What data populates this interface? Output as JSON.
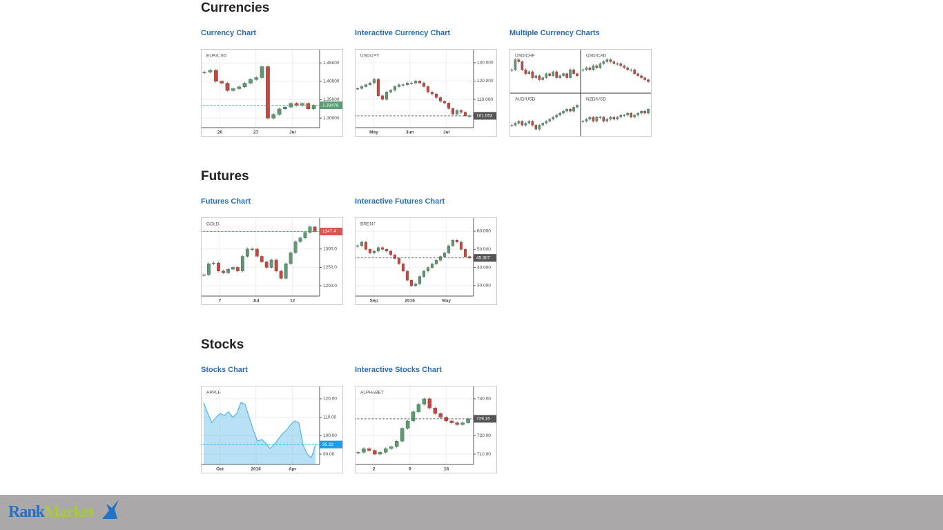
{
  "candle_colors": {
    "up": "#5c9a74",
    "down": "#c9463d"
  },
  "sections": [
    {
      "title": "Currencies",
      "cards": [
        {
          "link": "Currency Chart",
          "charts": [
            {
              "type": "candlestick",
              "symbol": "EUR/USD",
              "ylim": [
                1.274,
                1.486
              ],
              "yticks": [
                {
                  "value": 1.45,
                  "label": "1.45000"
                },
                {
                  "value": 1.4,
                  "label": "1.40000"
                },
                {
                  "value": 1.35,
                  "label": "1.35000"
                },
                {
                  "value": 1.3,
                  "label": "1.30000"
                }
              ],
              "xlabels": [
                "20",
                "27",
                "Jul"
              ],
              "last": 1.33478,
              "last_color": "#5a9e78",
              "values": [
                1.425,
                1.43,
                1.4,
                1.395,
                1.375,
                1.38,
                1.385,
                1.395,
                1.405,
                1.41,
                1.44,
                1.3,
                1.31,
                1.325,
                1.33,
                1.34,
                1.335,
                1.34,
                1.325,
                1.335
              ]
            }
          ]
        },
        {
          "link": "Interactive Currency Chart",
          "charts": [
            {
              "type": "candlestick",
              "symbol": "USD/JPY",
              "ylim": [
                94.6,
                137.1
              ],
              "yticks": [
                {
                  "value": 130,
                  "label": "130.000"
                },
                {
                  "value": 120,
                  "label": "120.000"
                },
                {
                  "value": 110,
                  "label": "110.000"
                }
              ],
              "xlabels": [
                "May",
                "Jun",
                "Jul"
              ],
              "last": 101.053,
              "last_color": "#555555",
              "values": [
                116,
                117,
                118,
                119,
                121,
                112,
                110,
                114,
                115,
                117,
                118,
                118,
                119,
                119,
                120,
                119,
                117,
                114,
                113,
                111,
                109,
                108,
                105,
                102,
                104,
                103,
                101,
                101.053
              ]
            }
          ]
        },
        {
          "link": "Multiple Currency Charts",
          "charts": [
            {
              "type": "candlestick",
              "symbol": "USD/CHF",
              "ylim": [
                0.9,
                1.1
              ],
              "values": [
                1.0,
                1.05,
                1.04,
                1.0,
                0.98,
                0.99,
                0.96,
                0.97,
                0.95,
                0.96,
                0.98,
                0.97,
                0.99,
                0.96,
                0.97,
                0.98,
                0.96,
                1.0,
                0.98,
                0.97
              ]
            },
            {
              "type": "candlestick",
              "symbol": "USD/CAD",
              "ylim": [
                1.2,
                1.4
              ],
              "values": [
                1.3,
                1.31,
                1.3,
                1.32,
                1.31,
                1.33,
                1.34,
                1.35,
                1.34,
                1.33,
                1.33,
                1.32,
                1.31,
                1.3,
                1.3,
                1.28,
                1.27,
                1.26,
                1.25,
                1.24
              ]
            },
            {
              "type": "candlestick",
              "symbol": "AUD/USD",
              "ylim": [
                0.7,
                0.8
              ],
              "values": [
                0.72,
                0.725,
                0.73,
                0.72,
                0.725,
                0.73,
                0.72,
                0.71,
                0.72,
                0.725,
                0.73,
                0.735,
                0.74,
                0.745,
                0.75,
                0.755,
                0.76,
                0.755,
                0.765,
                0.77
              ]
            },
            {
              "type": "candlestick",
              "symbol": "NZD/USD",
              "ylim": [
                0.6,
                0.7
              ],
              "values": [
                0.63,
                0.635,
                0.64,
                0.63,
                0.64,
                0.64,
                0.63,
                0.635,
                0.64,
                0.635,
                0.64,
                0.645,
                0.645,
                0.65,
                0.64,
                0.645,
                0.65,
                0.655,
                0.65,
                0.66
              ]
            }
          ]
        }
      ]
    },
    {
      "title": "Futures",
      "cards": [
        {
          "link": "Futures Chart",
          "charts": [
            {
              "type": "candlestick",
              "symbol": "GOLD",
              "ylim": [
                1172,
                1384
              ],
              "yticks": [
                {
                  "value": 1300,
                  "label": "1300.0"
                },
                {
                  "value": 1250,
                  "label": "1250.0"
                },
                {
                  "value": 1200,
                  "label": "1200.0"
                }
              ],
              "xlabels": [
                "7",
                "Jul",
                "12"
              ],
              "last": 1347.4,
              "last_color": "#d9534f",
              "values": [
                1230,
                1260,
                1262,
                1240,
                1235,
                1245,
                1250,
                1240,
                1280,
                1300,
                1300,
                1280,
                1265,
                1250,
                1270,
                1240,
                1220,
                1260,
                1290,
                1320,
                1330,
                1345,
                1360,
                1347.4
              ]
            }
          ]
        },
        {
          "link": "Interactive Futures Chart",
          "charts": [
            {
              "type": "candlestick",
              "symbol": "BRENT",
              "ylim": [
                24.3,
                67.2
              ],
              "yticks": [
                {
                  "value": 60,
                  "label": "60.000"
                },
                {
                  "value": 50,
                  "label": "50.000"
                },
                {
                  "value": 40,
                  "label": "40.000"
                },
                {
                  "value": 30,
                  "label": "30.000"
                }
              ],
              "xlabels": [
                "Sep",
                "2016",
                "May"
              ],
              "last": 45.307,
              "last_color": "#555555",
              "values": [
                52,
                54,
                50,
                48,
                49,
                51,
                50,
                49,
                47,
                45,
                42,
                38,
                33,
                30,
                31,
                35,
                38,
                40,
                42,
                44,
                46,
                48,
                52,
                55,
                54,
                50,
                46,
                45.307
              ]
            }
          ]
        }
      ]
    },
    {
      "title": "Stocks",
      "cards": [
        {
          "link": "Stocks Chart",
          "charts": [
            {
              "type": "area",
              "symbol": "APPLE",
              "ylim": [
                84.4,
                126.7
              ],
              "yticks": [
                {
                  "value": 120,
                  "label": "120.00"
                },
                {
                  "value": 110,
                  "label": "110.00"
                },
                {
                  "value": 100,
                  "label": "100.00"
                },
                {
                  "value": 90,
                  "label": "90.00"
                }
              ],
              "xlabels": [
                "Oct",
                "2016",
                "Apr"
              ],
              "last": 95.22,
              "last_color": "#1e9be8",
              "color": "#4fb3e8",
              "values": [
                118,
                112,
                107,
                110,
                112,
                111,
                113,
                110,
                112,
                118,
                117,
                110,
                103,
                97,
                98,
                96,
                93,
                95,
                98,
                101,
                103,
                106,
                108,
                107,
                95,
                90,
                88,
                95.22
              ]
            }
          ]
        },
        {
          "link": "Interactive Stocks Chart",
          "charts": [
            {
              "type": "candlestick",
              "symbol": "ALPHABET",
              "ylim": [
                704.4,
                746.7
              ],
              "yticks": [
                {
                  "value": 740,
                  "label": "740.00"
                },
                {
                  "value": 720,
                  "label": "720.00"
                },
                {
                  "value": 710,
                  "label": "710.00"
                }
              ],
              "xlabels": [
                "2",
                "9",
                "16"
              ],
              "last": 729.15,
              "last_color": "#555555",
              "values": [
                711,
                713,
                712,
                710,
                711,
                713,
                714,
                717,
                724,
                728,
                733,
                737,
                740,
                735,
                732,
                730,
                728,
                727,
                726,
                727,
                729.15
              ]
            }
          ]
        }
      ]
    }
  ],
  "footer": {
    "logo_part1": "Rank",
    "logo_part2": "Market"
  }
}
